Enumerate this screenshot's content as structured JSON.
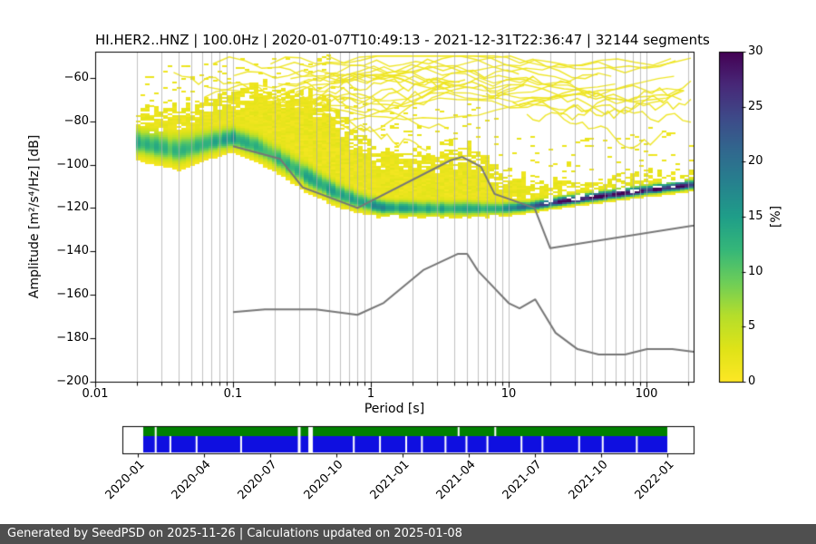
{
  "chart_data": {
    "type": "heatmap",
    "title": "HI.HER2..HNZ | 100.0Hz | 2020-01-07T10:49:13 - 2021-12-31T22:36:47 | 32144 segments",
    "station": "HI.HER2..HNZ",
    "sampling_rate": "100.0Hz",
    "time_range": "2020-01-07T10:49:13 - 2021-12-31T22:36:47",
    "segments": 32144,
    "xlabel": "Period [s]",
    "ylabel": "Amplitude [m²/s⁴/Hz] [dB]",
    "xscale": "log",
    "xlim": [
      0.01,
      219.8
    ],
    "ylim": [
      -200,
      -48
    ],
    "x_tick_values": [
      0.01,
      0.1,
      1,
      10,
      100
    ],
    "x_tick_labels": [
      "0.01",
      "0.1",
      "1",
      "10",
      "100"
    ],
    "y_tick_values": [
      -60,
      -80,
      -100,
      -120,
      -140,
      -160,
      -180,
      -200
    ],
    "y_tick_labels": [
      "−60",
      "−80",
      "−100",
      "−120",
      "−140",
      "−160",
      "−180",
      "−200"
    ],
    "grid_color": "#aaaaaa",
    "colorbar": {
      "label": "[%]",
      "min": 0,
      "max": 30,
      "tick_values": [
        0,
        5,
        10,
        15,
        20,
        25,
        30
      ],
      "tick_labels": [
        "0",
        "5",
        "10",
        "15",
        "20",
        "25",
        "30"
      ],
      "colormap": "viridis_r"
    },
    "colormap_stops": [
      "#440154",
      "#482878",
      "#3e4a89",
      "#31688e",
      "#26828e",
      "#1f9e89",
      "#35b779",
      "#6ece58",
      "#b5de2b",
      "#dfe318",
      "#fde725"
    ],
    "ppsd_ridge": [
      {
        "p": 0.02,
        "mode": -90,
        "sigma": 4.5,
        "peak": 13,
        "top": -76,
        "bottom": -112
      },
      {
        "p": 0.04,
        "mode": -94,
        "sigma": 5,
        "peak": 11,
        "top": -73,
        "bottom": -114
      },
      {
        "p": 0.07,
        "mode": -90,
        "sigma": 4,
        "peak": 13,
        "top": -69,
        "bottom": -113
      },
      {
        "p": 0.1,
        "mode": -88,
        "sigma": 3.5,
        "peak": 15,
        "top": -66,
        "bottom": -113
      },
      {
        "p": 0.15,
        "mode": -92,
        "sigma": 4,
        "peak": 13,
        "top": -63,
        "bottom": -115
      },
      {
        "p": 0.22,
        "mode": -98,
        "sigma": 4,
        "peak": 12,
        "top": -62,
        "bottom": -117
      },
      {
        "p": 0.35,
        "mode": -106,
        "sigma": 4,
        "peak": 13,
        "top": -66,
        "bottom": -119
      },
      {
        "p": 0.55,
        "mode": -113,
        "sigma": 3.5,
        "peak": 14,
        "top": -74,
        "bottom": -121
      },
      {
        "p": 0.8,
        "mode": -117,
        "sigma": 3,
        "peak": 15,
        "top": -84,
        "bottom": -122
      },
      {
        "p": 1.2,
        "mode": -120,
        "sigma": 2.5,
        "peak": 16,
        "top": -92,
        "bottom": -123
      },
      {
        "p": 2.5,
        "mode": -120.5,
        "sigma": 2.5,
        "peak": 14,
        "top": -93,
        "bottom": -123.5
      },
      {
        "p": 5,
        "mode": -120.5,
        "sigma": 2.5,
        "peak": 13,
        "top": -90,
        "bottom": -123.5
      },
      {
        "p": 9,
        "mode": -120.5,
        "sigma": 2,
        "peak": 16,
        "top": -102,
        "bottom": -123.5
      },
      {
        "p": 14,
        "mode": -119.5,
        "sigma": 1.6,
        "peak": 22,
        "top": -106,
        "bottom": -123
      },
      {
        "p": 25,
        "mode": -117,
        "sigma": 1.5,
        "peak": 28,
        "top": -108,
        "bottom": -121
      },
      {
        "p": 50,
        "mode": -114.5,
        "sigma": 1.5,
        "peak": 30,
        "top": -106,
        "bottom": -119
      },
      {
        "p": 100,
        "mode": -112,
        "sigma": 1.5,
        "peak": 30,
        "top": -104,
        "bottom": -116
      },
      {
        "p": 215,
        "mode": -109.5,
        "sigma": 1.5,
        "peak": 28,
        "top": -102,
        "bottom": -114
      }
    ],
    "noise_models": {
      "color": "#777777",
      "nhnm": [
        [
          0.1,
          -91.5
        ],
        [
          0.22,
          -97.4
        ],
        [
          0.32,
          -110.5
        ],
        [
          0.8,
          -120.0
        ],
        [
          3.8,
          -98.0
        ],
        [
          4.6,
          -96.5
        ],
        [
          6.3,
          -101.0
        ],
        [
          7.9,
          -113.5
        ],
        [
          15.4,
          -120.0
        ],
        [
          20.0,
          -138.5
        ],
        [
          354.8,
          -126.0
        ]
      ],
      "nlnm": [
        [
          0.1,
          -168.0
        ],
        [
          0.17,
          -166.7
        ],
        [
          0.4,
          -166.7
        ],
        [
          0.8,
          -169.2
        ],
        [
          1.24,
          -163.7
        ],
        [
          2.4,
          -148.6
        ],
        [
          4.3,
          -141.1
        ],
        [
          5.0,
          -141.1
        ],
        [
          6.0,
          -149.0
        ],
        [
          10.0,
          -163.8
        ],
        [
          12.0,
          -166.2
        ],
        [
          15.6,
          -162.1
        ],
        [
          21.9,
          -177.5
        ],
        [
          31.6,
          -185.0
        ],
        [
          45.0,
          -187.5
        ],
        [
          70.0,
          -187.5
        ],
        [
          101.0,
          -185.0
        ],
        [
          154.0,
          -185.0
        ],
        [
          328.0,
          -187.5
        ]
      ]
    }
  },
  "timeline": {
    "tick_labels": [
      "2020-01",
      "2020-04",
      "2020-07",
      "2020-10",
      "2021-01",
      "2021-04",
      "2021-07",
      "2021-10",
      "2022-01"
    ],
    "green_color": "#008000",
    "blue_color": "#0f0fe0",
    "coverage_start_frac": 0.0365,
    "coverage_end_frac": 0.954,
    "green_gaps": [
      {
        "f": 0.022,
        "w": 2
      },
      {
        "f": 0.295,
        "w": 3
      },
      {
        "f": 0.315,
        "w": 5
      },
      {
        "f": 0.6,
        "w": 2
      },
      {
        "f": 0.67,
        "w": 2
      }
    ],
    "blue_gaps": [
      {
        "f": 0.022,
        "w": 2
      },
      {
        "f": 0.05,
        "w": 2
      },
      {
        "f": 0.1,
        "w": 2
      },
      {
        "f": 0.185,
        "w": 2
      },
      {
        "f": 0.295,
        "w": 3
      },
      {
        "f": 0.315,
        "w": 5
      },
      {
        "f": 0.4,
        "w": 2
      },
      {
        "f": 0.45,
        "w": 2
      },
      {
        "f": 0.5,
        "w": 2
      },
      {
        "f": 0.53,
        "w": 2
      },
      {
        "f": 0.575,
        "w": 2
      },
      {
        "f": 0.615,
        "w": 2
      },
      {
        "f": 0.655,
        "w": 2
      },
      {
        "f": 0.72,
        "w": 2
      },
      {
        "f": 0.76,
        "w": 2
      },
      {
        "f": 0.83,
        "w": 2
      },
      {
        "f": 0.875,
        "w": 2
      },
      {
        "f": 0.94,
        "w": 2
      }
    ]
  },
  "footer": {
    "text": "Generated by SeedPSD on 2025-11-26 | Calculations updated on 2025-01-08",
    "bg_color": "#4f4f4f"
  }
}
